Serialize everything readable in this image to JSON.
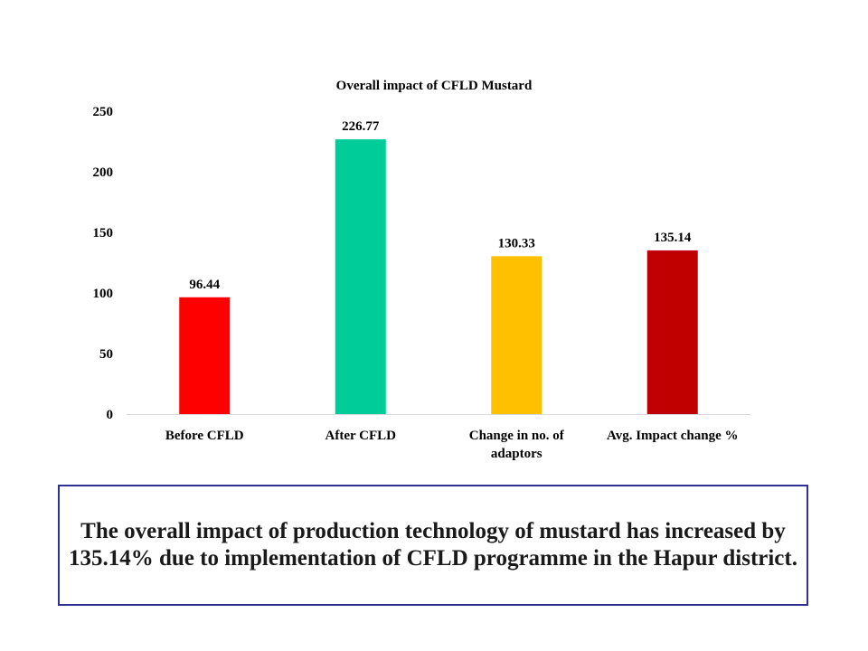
{
  "chart_data": {
    "type": "bar",
    "title": "Overall  impact of CFLD Mustard",
    "categories": [
      "Before CFLD",
      "After CFLD",
      "Change in no. of adaptors",
      "Avg. Impact change %"
    ],
    "category_lines": [
      [
        "Before CFLD"
      ],
      [
        "After CFLD"
      ],
      [
        "Change in no. of",
        "adaptors"
      ],
      [
        "Avg. Impact change %"
      ]
    ],
    "values": [
      96.44,
      226.77,
      130.33,
      135.14
    ],
    "value_labels": [
      "96.44",
      "226.77",
      "130.33",
      "135.14"
    ],
    "colors": [
      "#ff0000",
      "#00cc99",
      "#ffc000",
      "#c00000"
    ],
    "ylim": [
      0,
      250
    ],
    "yticks": [
      0,
      50,
      100,
      150,
      200,
      250
    ],
    "xlabel": "",
    "ylabel": "",
    "grid": false,
    "legend": "none"
  },
  "summary": {
    "line1": "The overall impact of production technology of mustard has increased by",
    "line2": "135.14% due to implementation of CFLD programme in the Hapur district."
  },
  "colors": {
    "box_border": "#2e3192",
    "axis": "#d9d9d9"
  }
}
